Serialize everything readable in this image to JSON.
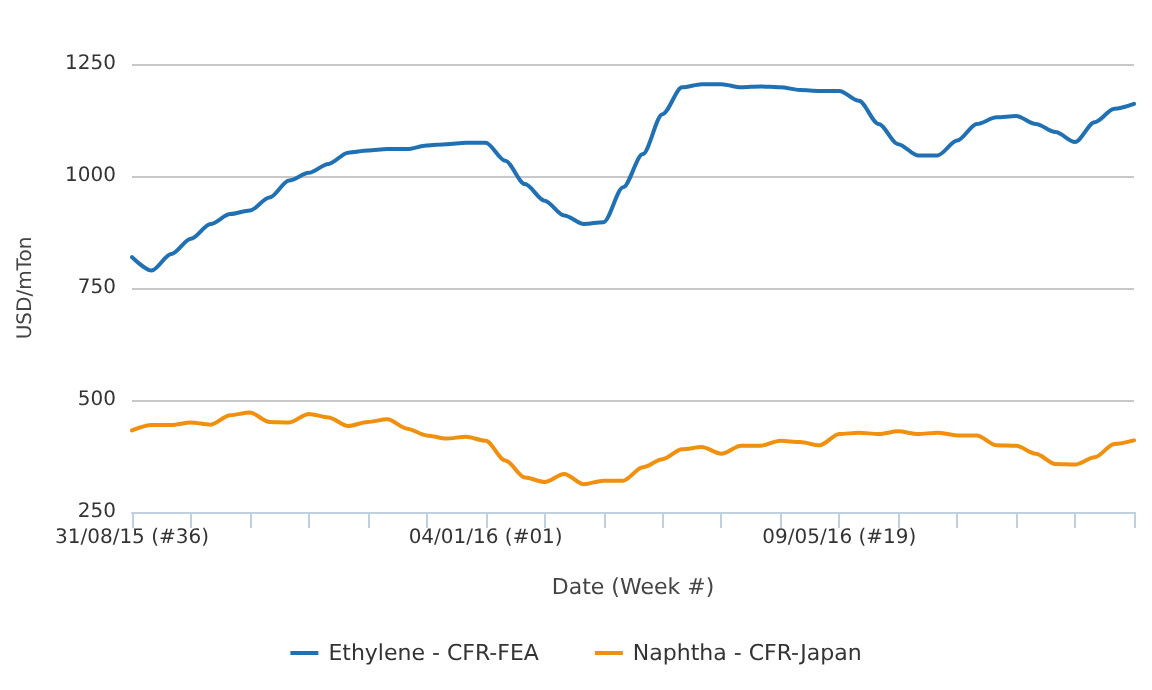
{
  "chart_data": {
    "type": "line",
    "xlabel": "Date (Week #)",
    "ylabel": "USD/mTon",
    "categories": [
      "31/08/15 (#36)",
      null,
      null,
      null,
      null,
      null,
      null,
      null,
      null,
      null,
      null,
      null,
      null,
      null,
      null,
      null,
      null,
      null,
      "04/01/16 (#01)",
      null,
      null,
      null,
      null,
      null,
      null,
      null,
      null,
      null,
      null,
      null,
      null,
      null,
      null,
      null,
      null,
      null,
      "09/05/16 (#19)",
      null,
      null,
      null,
      null,
      null,
      null,
      null,
      null,
      null,
      null,
      null,
      null,
      null,
      null,
      null
    ],
    "series": [
      {
        "name": "Ethylene - CFR-FEA",
        "color": "#2070b4",
        "values": [
          819,
          789,
          826,
          860,
          893,
          915,
          923,
          952,
          990,
          1007,
          1027,
          1052,
          1057,
          1060,
          1060,
          1068,
          1071,
          1074,
          1074,
          1034,
          982,
          945,
          912,
          893,
          897,
          975,
          1049,
          1138,
          1198,
          1205,
          1205,
          1198,
          1200,
          1198,
          1192,
          1190,
          1190,
          1168,
          1116,
          1071,
          1046,
          1046,
          1079,
          1116,
          1131,
          1134,
          1116,
          1098,
          1076,
          1120,
          1150,
          1161
        ]
      },
      {
        "name": "Naphtha - CFR-Japan",
        "color": "#f0900e",
        "values": [
          432,
          444,
          444,
          450,
          445,
          466,
          472,
          451,
          450,
          469,
          461,
          442,
          451,
          457,
          436,
          421,
          414,
          418,
          409,
          365,
          327,
          317,
          335,
          312,
          320,
          320,
          350,
          368,
          390,
          395,
          380,
          398,
          398,
          409,
          406,
          399,
          424,
          427,
          424,
          430,
          424,
          427,
          421,
          421,
          399,
          398,
          380,
          357,
          356,
          372,
          402,
          410
        ]
      }
    ],
    "ylim": [
      250,
      1250
    ],
    "yticks": [
      250,
      500,
      750,
      1000,
      1250
    ],
    "grid": "y",
    "legend": "bottom",
    "marker": "none",
    "line_style": "solid"
  }
}
